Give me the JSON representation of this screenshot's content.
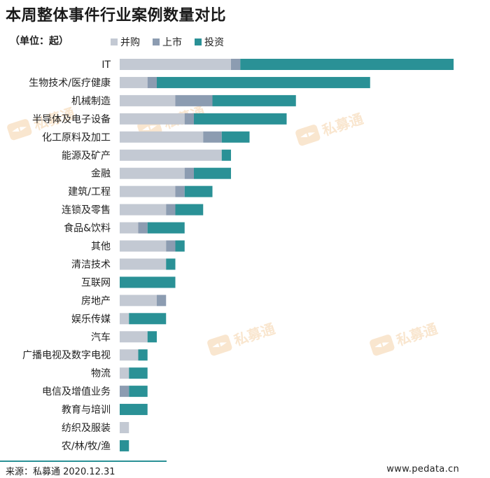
{
  "header": {
    "title": "本周整体事件行业案例数量对比",
    "unit": "（单位：起）"
  },
  "legend": [
    {
      "label": "并购",
      "color": "#c3c9d3"
    },
    {
      "label": "上市",
      "color": "#8c9cb1"
    },
    {
      "label": "投资",
      "color": "#2a9196"
    }
  ],
  "footer": {
    "source": "来源：私募通 2020.12.31",
    "site": "www.pedata.cn"
  },
  "watermark": {
    "text": "私募通"
  },
  "chart_data": {
    "type": "bar",
    "orientation": "horizontal",
    "stacked": true,
    "title": "本周整体事件行业案例数量对比",
    "unit": "（单位：起）",
    "legend_position": "top",
    "grid": false,
    "categories": [
      "IT",
      "生物技术/医疗健康",
      "机械制造",
      "半导体及电子设备",
      "化工原料及加工",
      "能源及矿产",
      "金融",
      "建筑/工程",
      "连锁及零售",
      "食品&饮料",
      "其他",
      "清洁技术",
      "互联网",
      "房地产",
      "娱乐传媒",
      "汽车",
      "广播电视及数字电视",
      "物流",
      "电信及增值业务",
      "教育与培训",
      "纺织及服装",
      "农/林/牧/渔"
    ],
    "series": [
      {
        "name": "并购",
        "values": [
          12,
          3,
          6,
          7,
          9,
          11,
          7,
          6,
          5,
          2,
          5,
          5,
          0,
          4,
          1,
          3,
          2,
          1,
          0,
          0,
          1,
          0
        ]
      },
      {
        "name": "上市",
        "values": [
          1,
          1,
          4,
          1,
          2,
          0,
          1,
          1,
          1,
          1,
          1,
          0,
          0,
          1,
          0,
          0,
          0,
          0,
          1,
          0,
          0,
          0
        ]
      },
      {
        "name": "投资",
        "values": [
          23,
          23,
          9,
          10,
          3,
          1,
          4,
          3,
          3,
          4,
          1,
          1,
          6,
          0,
          4,
          1,
          1,
          2,
          2,
          3,
          0,
          1
        ]
      }
    ],
    "xlim": [
      0,
      36
    ]
  }
}
